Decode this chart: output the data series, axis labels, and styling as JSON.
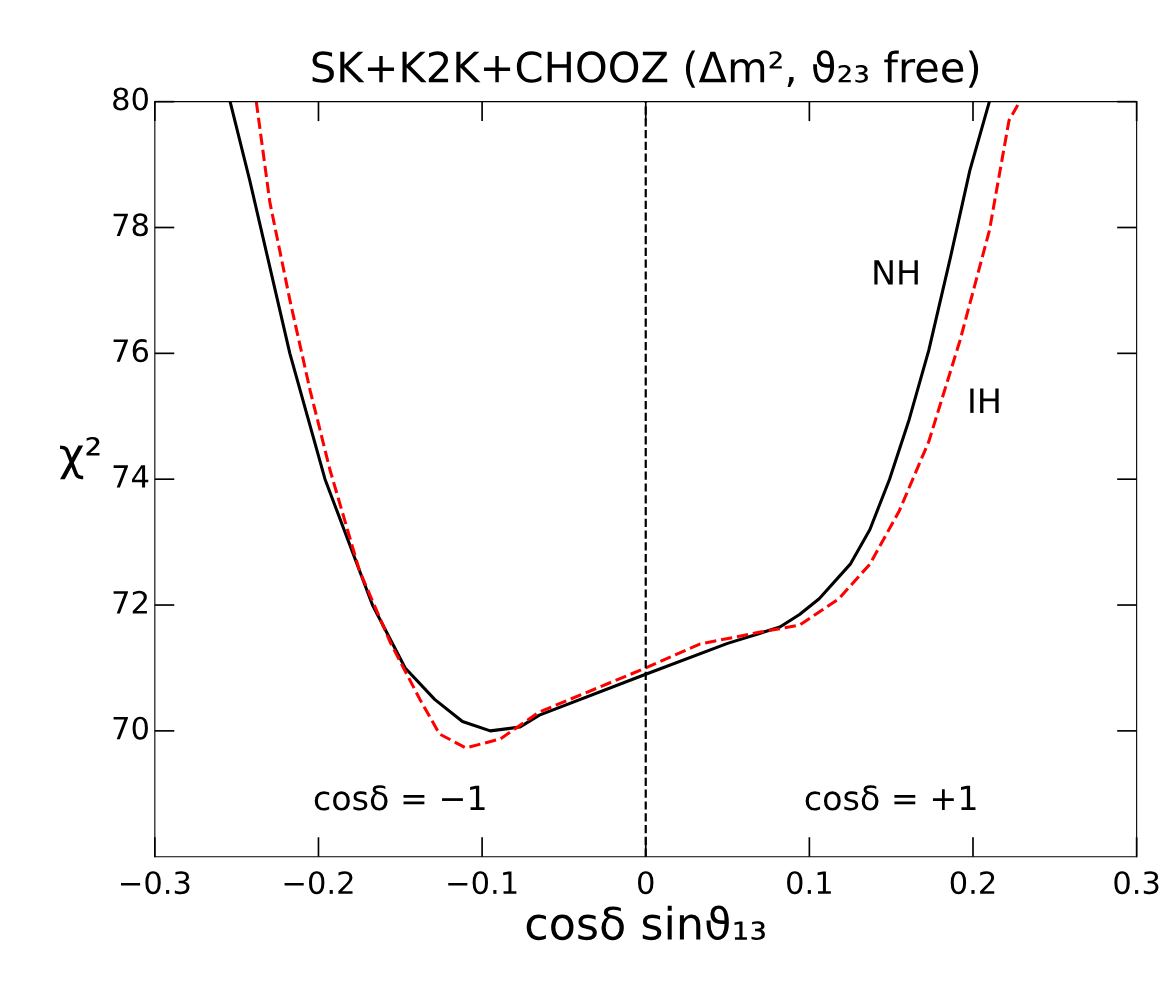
{
  "chart_data": {
    "type": "line",
    "title": "SK+K2K+CHOOZ (Δm², ϑ₂₃ free)",
    "xlabel": "cosδ sinϑ₁₃",
    "ylabel": "χ²",
    "xlim": [
      -0.3,
      0.3
    ],
    "ylim": [
      68,
      80
    ],
    "xticks": [
      {
        "value": -0.3,
        "label": "−0.3"
      },
      {
        "value": -0.2,
        "label": "−0.2"
      },
      {
        "value": -0.1,
        "label": "−0.1"
      },
      0,
      0.1,
      0.2,
      0.3
    ],
    "yticks": [
      70,
      72,
      74,
      76,
      78,
      80
    ],
    "grid": false,
    "legend": false,
    "marker": "none",
    "series": [
      {
        "name": "NH",
        "color": "#000000",
        "line_style": "solid",
        "x": [
          -0.254,
          -0.242,
          -0.2175,
          -0.196,
          -0.167,
          -0.147,
          -0.129,
          -0.112,
          -0.095,
          -0.077,
          -0.065,
          0,
          0.05,
          0.082,
          0.094,
          0.106,
          0.125,
          0.137,
          0.149,
          0.161,
          0.173,
          0.186,
          0.198,
          0.21
        ],
        "values": [
          80,
          78.75,
          76,
          74,
          72,
          71,
          70.5,
          70.15,
          70,
          70.06,
          70.25,
          70.9,
          71.39,
          71.65,
          71.85,
          72.1,
          72.65,
          73.2,
          74,
          74.95,
          76.05,
          77.5,
          78.9,
          80
        ]
      },
      {
        "name": "IH",
        "color": "#ff0000",
        "line_style": "dashed",
        "x": [
          -0.238,
          -0.2297,
          -0.2175,
          -0.205,
          -0.193,
          -0.175,
          -0.156,
          -0.138,
          -0.126,
          -0.11,
          -0.089,
          -0.065,
          0,
          0.033,
          0.07,
          0.094,
          0.118,
          0.137,
          0.155,
          0.173,
          0.192,
          0.21,
          0.222,
          0.2285
        ],
        "values": [
          80,
          78.4,
          76.85,
          75.4,
          74.15,
          72.55,
          71.4,
          70.5,
          69.95,
          69.73,
          69.87,
          70.3,
          71,
          71.38,
          71.57,
          71.68,
          72.1,
          72.65,
          73.5,
          74.6,
          76.2,
          77.95,
          79.7,
          80
        ]
      }
    ],
    "ref_lines": [
      {
        "axis": "x",
        "value": 0,
        "color": "#000000",
        "line_style": "dashed"
      }
    ],
    "annotations": [
      "cosδ = −1",
      "cosδ = +1"
    ]
  }
}
